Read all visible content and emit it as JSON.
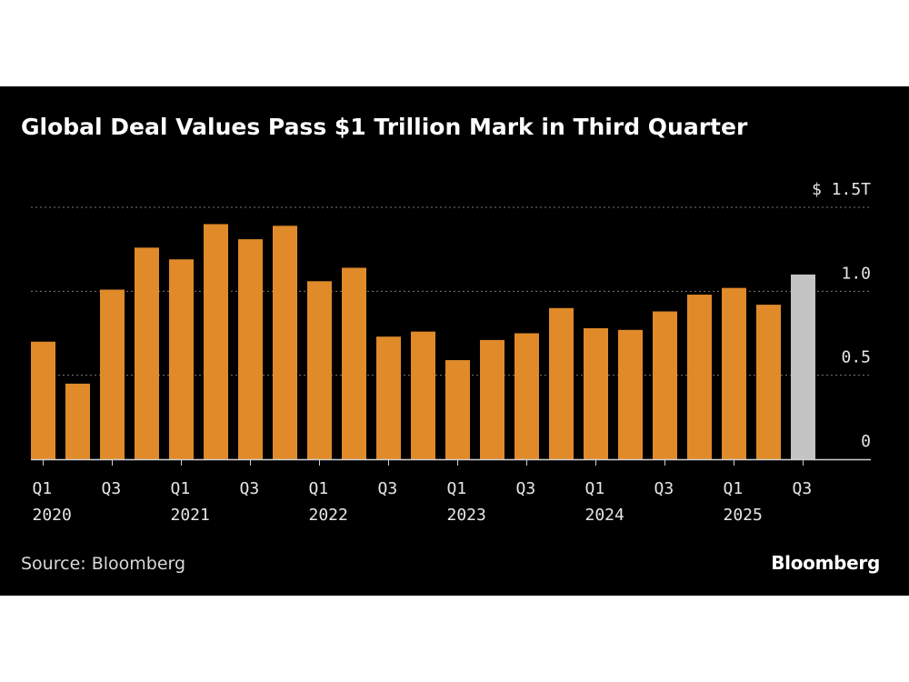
{
  "chart_data": {
    "type": "bar",
    "title": "Global Deal Values Pass $1 Trillion Mark in Third Quarter",
    "unit": "$ trillions",
    "ylim": [
      0,
      1.5
    ],
    "y_ticks": [
      {
        "value": 0,
        "label": "0"
      },
      {
        "value": 0.5,
        "label": "0.5"
      },
      {
        "value": 1.0,
        "label": "1.0"
      },
      {
        "value": 1.5,
        "label": "$ 1.5T"
      }
    ],
    "categories": [
      "Q1 2020",
      "Q2 2020",
      "Q3 2020",
      "Q4 2020",
      "Q1 2021",
      "Q2 2021",
      "Q3 2021",
      "Q4 2021",
      "Q1 2022",
      "Q2 2022",
      "Q3 2022",
      "Q4 2022",
      "Q1 2023",
      "Q2 2023",
      "Q3 2023",
      "Q4 2023",
      "Q1 2024",
      "Q2 2024",
      "Q3 2024",
      "Q4 2024",
      "Q1 2025",
      "Q2 2025",
      "Q3 2025"
    ],
    "values": [
      0.7,
      0.45,
      1.01,
      1.26,
      1.19,
      1.4,
      1.31,
      1.39,
      1.06,
      1.14,
      0.73,
      0.76,
      0.59,
      0.71,
      0.75,
      0.9,
      0.78,
      0.77,
      0.88,
      0.98,
      1.02,
      0.92,
      1.1
    ],
    "highlight": [
      false,
      false,
      false,
      false,
      false,
      false,
      false,
      false,
      false,
      false,
      false,
      false,
      false,
      false,
      false,
      false,
      false,
      false,
      false,
      false,
      false,
      false,
      true
    ],
    "x_ticks": [
      {
        "index": 0,
        "quarter": "Q1",
        "year": "2020"
      },
      {
        "index": 2,
        "quarter": "Q3",
        "year": ""
      },
      {
        "index": 4,
        "quarter": "Q1",
        "year": "2021"
      },
      {
        "index": 6,
        "quarter": "Q3",
        "year": ""
      },
      {
        "index": 8,
        "quarter": "Q1",
        "year": "2022"
      },
      {
        "index": 10,
        "quarter": "Q3",
        "year": ""
      },
      {
        "index": 12,
        "quarter": "Q1",
        "year": "2023"
      },
      {
        "index": 14,
        "quarter": "Q3",
        "year": ""
      },
      {
        "index": 16,
        "quarter": "Q1",
        "year": "2024"
      },
      {
        "index": 18,
        "quarter": "Q3",
        "year": ""
      },
      {
        "index": 20,
        "quarter": "Q1",
        "year": "2025"
      },
      {
        "index": 22,
        "quarter": "Q3",
        "year": ""
      }
    ],
    "colors": {
      "bar": "#e08a2a",
      "highlight": "#c4c4c4",
      "grid": "#7a7a7a",
      "axis": "#cfcfcf"
    }
  },
  "footer": {
    "source": "Source: Bloomberg",
    "brand": "Bloomberg"
  }
}
